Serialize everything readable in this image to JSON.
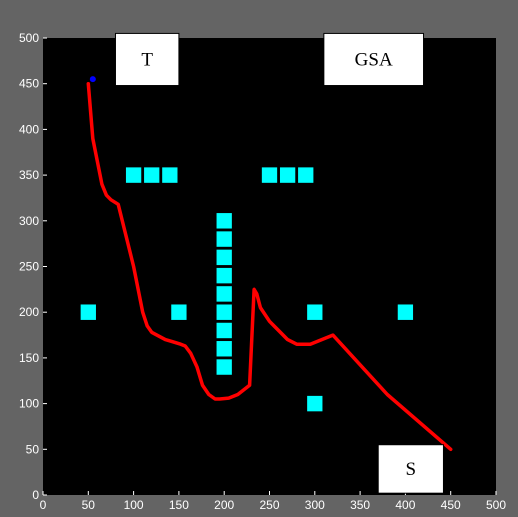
{
  "chart_data": {
    "type": "scatter",
    "xlim": [
      0,
      500
    ],
    "ylim": [
      0,
      500
    ],
    "xticks": [
      "0",
      "50",
      "100",
      "150",
      "200",
      "250",
      "300",
      "350",
      "400",
      "450",
      "500"
    ],
    "yticks": [
      "0",
      "50",
      "100",
      "150",
      "200",
      "250",
      "300",
      "350",
      "400",
      "450",
      "500"
    ],
    "grid": false,
    "colors": {
      "background": "#000000",
      "figure": "#646464",
      "obstacle": "#00ffff",
      "path": "#ff0000",
      "start_marker": "#0000ff",
      "tick_text": "#ffffff"
    },
    "obstacles": {
      "size": 18,
      "centers": [
        [
          50,
          200
        ],
        [
          150,
          200
        ],
        [
          300,
          200
        ],
        [
          400,
          200
        ],
        [
          300,
          100
        ],
        [
          100,
          350
        ],
        [
          120,
          350
        ],
        [
          140,
          350
        ],
        [
          250,
          350
        ],
        [
          270,
          350
        ],
        [
          290,
          350
        ],
        [
          200,
          140
        ],
        [
          200,
          160
        ],
        [
          200,
          180
        ],
        [
          200,
          200
        ],
        [
          200,
          220
        ],
        [
          200,
          240
        ],
        [
          200,
          260
        ],
        [
          200,
          280
        ],
        [
          200,
          300
        ]
      ]
    },
    "series": [
      {
        "type": "line",
        "x": [
          450,
          380,
          320,
          295,
          280,
          270,
          260,
          255,
          250,
          240,
          236,
          233,
          228,
          215,
          205,
          195,
          190,
          183,
          176,
          170,
          163,
          157,
          152,
          142,
          135,
          120,
          115,
          110,
          100,
          83,
          75,
          70,
          65,
          55,
          50
        ],
        "y": [
          50,
          110,
          175,
          165,
          165,
          170,
          180,
          185,
          190,
          205,
          220,
          225,
          120,
          110,
          106,
          105,
          105,
          110,
          120,
          140,
          155,
          163,
          165,
          168,
          170,
          178,
          185,
          200,
          250,
          318,
          323,
          328,
          340,
          390,
          450
        ]
      },
      {
        "type": "point",
        "x": [
          55
        ],
        "y": [
          455
        ]
      }
    ],
    "annotations": [
      {
        "id": "T",
        "text": "T",
        "x_range": [
          80,
          150
        ],
        "y_range": [
          448,
          505
        ]
      },
      {
        "id": "GSA",
        "text": "GSA",
        "x_range": [
          310,
          420
        ],
        "y_range": [
          448,
          505
        ]
      },
      {
        "id": "S",
        "text": "S",
        "x_range": [
          370,
          442
        ],
        "y_range": [
          2,
          55
        ]
      }
    ]
  }
}
